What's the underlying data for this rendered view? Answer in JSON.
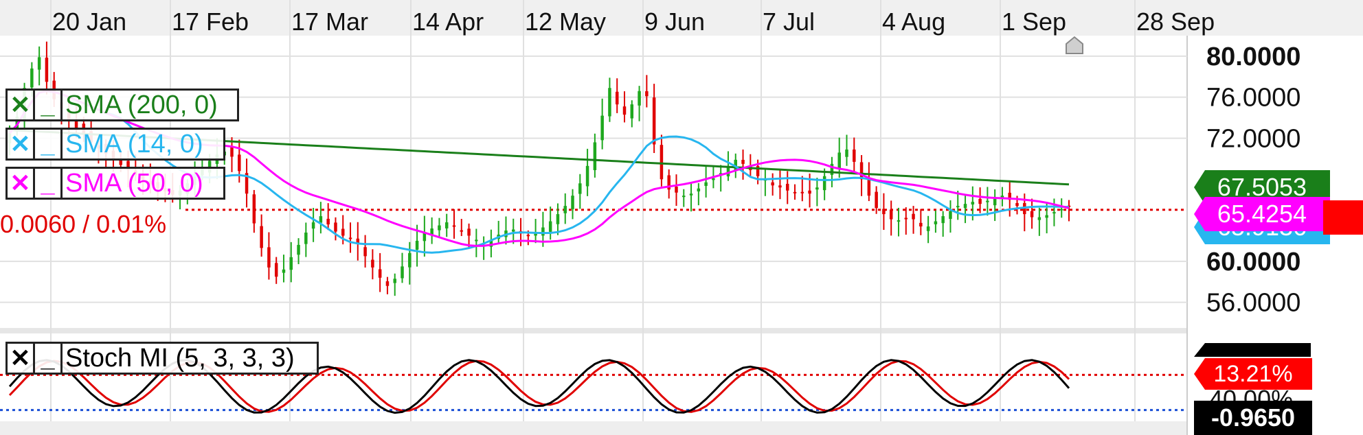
{
  "chart_data": {
    "type": "candlestick",
    "x_ticks": [
      "20 Jan",
      "17 Feb",
      "17 Mar",
      "14 Apr",
      "12 May",
      "9 Jun",
      "7 Jul",
      "4 Aug",
      "1 Sep",
      "28 Sep"
    ],
    "price_axis": {
      "ticks": [
        "80.0000",
        "76.0000",
        "72.0000",
        "60.0000",
        "56.0000"
      ],
      "range": [
        53.5,
        82.0
      ]
    },
    "price_tags": [
      {
        "label": "67.5053",
        "color": "#1a7f1a"
      },
      {
        "label": "65.9136",
        "color": "#27b6ef"
      },
      {
        "label": "65.4254",
        "color": "#ff00ff"
      }
    ],
    "change_text": "0.0060 / 0.01%",
    "current_price": 65.4254,
    "series": [
      {
        "name": "SMA (200, 0)",
        "color": "#1a7f1a",
        "period": 200
      },
      {
        "name": "SMA (14, 0)",
        "color": "#27b6ef",
        "period": 14
      },
      {
        "name": "SMA (50, 0)",
        "color": "#ff00ff",
        "period": 50
      }
    ],
    "candles_close": [
      72.5,
      74.1,
      76.9,
      78.8,
      79.9,
      77.5,
      75.8,
      74.9,
      73.7,
      73.0,
      72.4,
      71.6,
      71.0,
      70.5,
      69.9,
      69.4,
      68.9,
      68.4,
      68.0,
      67.5,
      67.1,
      66.8,
      66.5,
      66.9,
      67.6,
      68.4,
      69.1,
      69.8,
      70.4,
      70.7,
      70.2,
      68.8,
      66.6,
      63.7,
      61.3,
      59.4,
      58.5,
      59.2,
      60.4,
      61.6,
      62.8,
      63.8,
      64.4,
      63.6,
      62.9,
      62.5,
      62.2,
      61.7,
      60.5,
      59.4,
      58.4,
      57.6,
      58.3,
      59.5,
      60.8,
      62.0,
      62.8,
      63.2,
      63.5,
      63.8,
      63.4,
      62.9,
      62.5,
      62.1,
      61.8,
      62.1,
      62.6,
      63.0,
      63.1,
      62.7,
      62.5,
      62.8,
      63.3,
      63.9,
      64.6,
      65.4,
      66.4,
      67.6,
      69.3,
      71.6,
      74.2,
      76.9,
      75.3,
      74.3,
      75.3,
      76.6,
      76.1,
      71.4,
      68.0,
      67.0,
      66.7,
      66.4,
      66.6,
      67.1,
      67.7,
      68.1,
      68.6,
      69.3,
      69.9,
      69.5,
      68.9,
      68.3,
      68.0,
      67.4,
      67.2,
      66.9,
      66.7,
      66.7,
      66.6,
      67.2,
      68.3,
      69.5,
      70.6,
      70.9,
      69.7,
      68.0,
      66.4,
      65.2,
      64.6,
      64.1,
      64.0,
      64.2,
      64.1,
      63.4,
      63.4,
      63.9,
      64.4,
      64.9,
      65.4,
      65.6,
      65.8,
      65.6,
      65.9,
      66.1,
      66.4,
      66.0,
      65.4,
      64.6,
      64.3,
      64.3,
      64.5,
      64.8,
      65.1,
      65.4
    ]
  },
  "stoch": {
    "legend_label": "Stoch MI (5, 3, 3, 3)",
    "value_tag": "13.21%",
    "value_tag_color": "#ff0000",
    "bottom_tag": "-0.9650",
    "bottom_tag_color": "#000000",
    "partial_label": "40.00%",
    "line_colors": [
      "#000000",
      "#e00000"
    ],
    "levels": [
      {
        "value": 40,
        "color": "#e00000"
      },
      {
        "value": -40,
        "color": "#1a4fd6"
      }
    ]
  },
  "legend_buttons": {
    "close": "✕",
    "minimize": "_"
  },
  "colors": {
    "up": "#1ea81e",
    "down": "#e00000",
    "grid": "#e0e0e0",
    "axis_bg": "#f0f0f0"
  }
}
